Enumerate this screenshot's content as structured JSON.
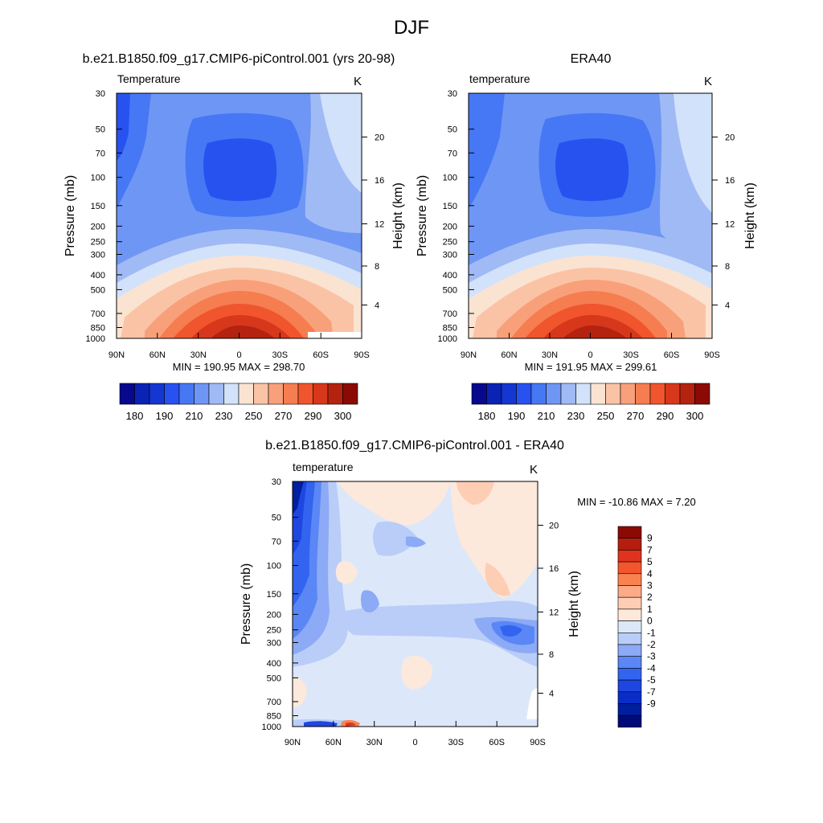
{
  "figure_title": "DJF",
  "colors": {
    "abs_palette": [
      "#08088c",
      "#0a23b4",
      "#1437d2",
      "#2852f0",
      "#4678f5",
      "#6e96f5",
      "#a0baf5",
      "#d2e2fa",
      "#fbe3d2",
      "#fbc3a5",
      "#f8a07a",
      "#f57d50",
      "#f0552d",
      "#d7371a",
      "#b4230f",
      "#8c0a05"
    ],
    "diff_palette": [
      "#000a78",
      "#001ea0",
      "#0a2dc8",
      "#1e46e1",
      "#3264f0",
      "#5a87f5",
      "#8caaf5",
      "#b9cdf8",
      "#dce8fa",
      "#fde8dc",
      "#fdcdb4",
      "#fcaa87",
      "#fa8250",
      "#f5552d",
      "#e1321e",
      "#b41e0f",
      "#8c0a05"
    ]
  },
  "chart_data": [
    {
      "type": "heatmap",
      "title": "b.e21.B1850.f09_g17.CMIP6-piControl.001 (yrs 20-98)",
      "variable_label": "Temperature",
      "units": "K",
      "ylabel": "Pressure (mb)",
      "y2label": "Height (km)",
      "x_ticks": [
        "90N",
        "60N",
        "30N",
        "0",
        "30S",
        "60S",
        "90S"
      ],
      "y_ticks": [
        "30",
        "50",
        "70",
        "100",
        "150",
        "200",
        "250",
        "300",
        "400",
        "500",
        "700",
        "850",
        "1000"
      ],
      "y2_ticks": [
        "20",
        "16",
        "12",
        "8",
        "4"
      ],
      "min_max": "MIN = 190.95  MAX = 298.70",
      "colorbar_labels": [
        "180",
        "190",
        "210",
        "230",
        "250",
        "270",
        "290",
        "300"
      ],
      "value_range": [
        190.95,
        298.7
      ]
    },
    {
      "type": "heatmap",
      "title": "ERA40",
      "variable_label": "temperature",
      "units": "K",
      "ylabel": "Pressure (mb)",
      "y2label": "Height (km)",
      "x_ticks": [
        "90N",
        "60N",
        "30N",
        "0",
        "30S",
        "60S",
        "90S"
      ],
      "y_ticks": [
        "30",
        "50",
        "70",
        "100",
        "150",
        "200",
        "250",
        "300",
        "400",
        "500",
        "700",
        "850",
        "1000"
      ],
      "y2_ticks": [
        "20",
        "16",
        "12",
        "8",
        "4"
      ],
      "min_max": "MIN = 191.95  MAX = 299.61",
      "colorbar_labels": [
        "180",
        "190",
        "210",
        "230",
        "250",
        "270",
        "290",
        "300"
      ],
      "value_range": [
        191.95,
        299.61
      ]
    },
    {
      "type": "heatmap",
      "title": "b.e21.B1850.f09_g17.CMIP6-piControl.001 - ERA40",
      "variable_label": "temperature",
      "units": "K",
      "ylabel": "Pressure (mb)",
      "y2label": "Height (km)",
      "x_ticks": [
        "90N",
        "60N",
        "30N",
        "0",
        "30S",
        "60S",
        "90S"
      ],
      "y_ticks": [
        "30",
        "50",
        "70",
        "100",
        "150",
        "200",
        "250",
        "300",
        "400",
        "500",
        "700",
        "850",
        "1000"
      ],
      "y2_ticks": [
        "20",
        "16",
        "12",
        "8",
        "4"
      ],
      "min_max": "MIN = -10.86  MAX =   7.20",
      "colorbar_labels": [
        "9",
        "7",
        "5",
        "4",
        "3",
        "2",
        "1",
        "0",
        "-1",
        "-2",
        "-3",
        "-4",
        "-5",
        "-7",
        "-9"
      ],
      "value_range": [
        -10.86,
        7.2
      ]
    }
  ]
}
